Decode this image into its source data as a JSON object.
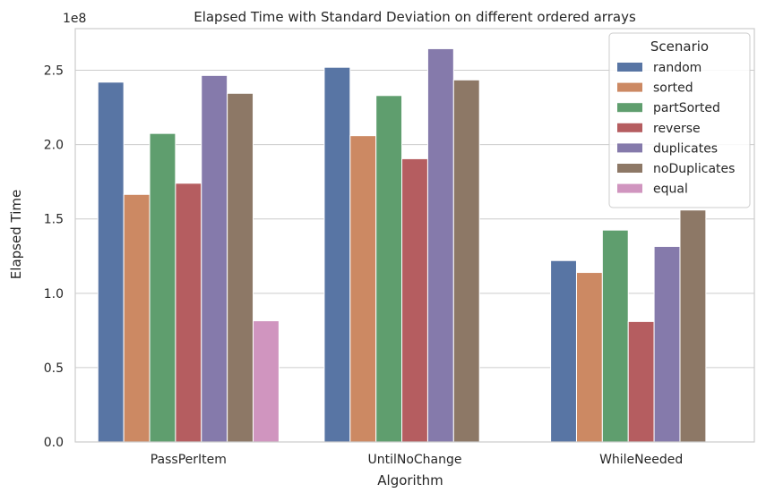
{
  "chart_data": {
    "type": "bar",
    "title": "Elapsed Time with Standard Deviation on different ordered arrays",
    "xlabel": "Algorithm",
    "ylabel": "Elapsed Time",
    "y_offset_label": "1e8",
    "y_scale": 100000000,
    "ylim": [
      0,
      2.78
    ],
    "yticks": [
      0.0,
      0.5,
      1.0,
      1.5,
      2.0,
      2.5
    ],
    "ytick_labels": [
      "0.0",
      "0.5",
      "1.0",
      "1.5",
      "2.0",
      "2.5"
    ],
    "grid": "horizontal",
    "legend_position": "top-right",
    "legend_title": "Scenario",
    "categories": [
      "PassPerItem",
      "UntilNoChange",
      "WhileNeeded"
    ],
    "series": [
      {
        "name": "random",
        "color": "#5875a4",
        "values": [
          2.42,
          2.52,
          1.22
        ]
      },
      {
        "name": "sorted",
        "color": "#cc8963",
        "values": [
          1.665,
          2.06,
          1.14
        ]
      },
      {
        "name": "partSorted",
        "color": "#5f9e6e",
        "values": [
          2.075,
          2.33,
          1.425
        ]
      },
      {
        "name": "reverse",
        "color": "#b55d60",
        "values": [
          1.74,
          1.905,
          0.81
        ]
      },
      {
        "name": "duplicates",
        "color": "#857aab",
        "values": [
          2.465,
          2.645,
          1.315
        ]
      },
      {
        "name": "noDuplicates",
        "color": "#8d7866",
        "values": [
          2.345,
          2.435,
          1.56
        ]
      },
      {
        "name": "equal",
        "color": "#d095bf",
        "values": [
          0.815,
          null,
          null
        ]
      }
    ]
  }
}
